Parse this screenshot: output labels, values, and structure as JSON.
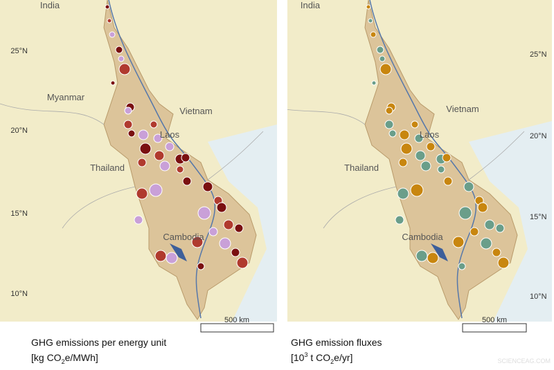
{
  "panels": [
    {
      "places": [
        "India",
        "Myanmar",
        "Vietnam",
        "Laos",
        "Thailand",
        "Cambodia"
      ],
      "latitudes": [
        "25°N",
        "20°N",
        "15°N",
        "10°N"
      ],
      "scale": "500 km",
      "caption": {
        "title": "GHG emissions per energy unit",
        "unit": [
          "[kg CO",
          "2",
          "e/MWh]"
        ]
      }
    },
    {
      "places": [
        "India",
        "Vietnam",
        "Laos",
        "Thailand",
        "Cambodia"
      ],
      "latitudes": [
        "25°N",
        "20°N",
        "15°N",
        "10°N"
      ],
      "scale": "500 km",
      "caption": {
        "title": "GHG emission fluxes",
        "unit": [
          "[10",
          "3",
          " t CO",
          "2",
          "e/yr]"
        ]
      }
    }
  ],
  "watermark": "SCIENCEAG.COM"
}
